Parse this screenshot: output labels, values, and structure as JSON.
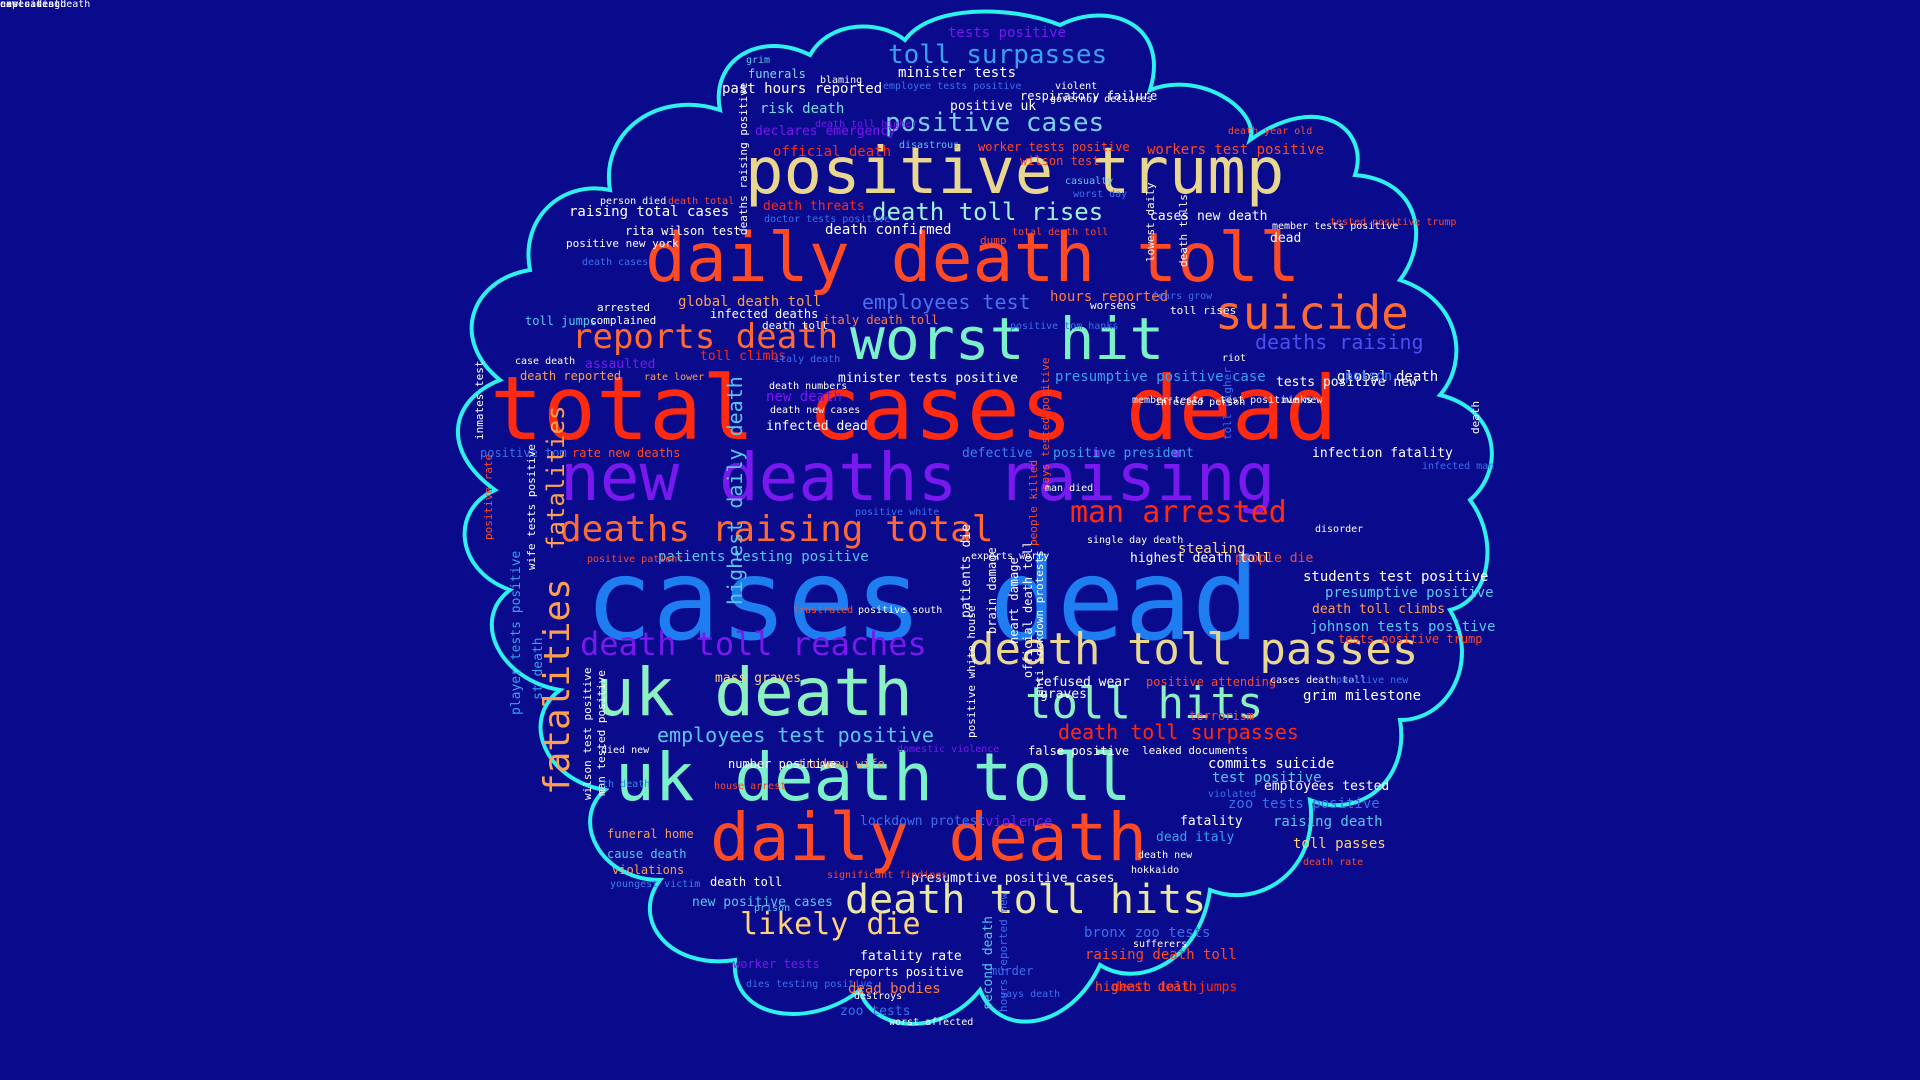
{
  "background_color": "#0a0a8c",
  "outline_color": "#2ff0f0",
  "words": [
    {
      "text": "cases dead",
      "color": "#1e7df0"
    },
    {
      "text": "total cases dead",
      "color": "#ff2a10"
    },
    {
      "text": "new deaths raising",
      "color": "#7a18f0"
    },
    {
      "text": "daily death toll",
      "color": "#ff4a26"
    },
    {
      "text": "positive trump",
      "color": "#e9d790"
    },
    {
      "text": "worst hit",
      "color": "#7cf0c8"
    },
    {
      "text": "uk death",
      "color": "#8cf0c0"
    },
    {
      "text": "uk death toll",
      "color": "#7cf0c8"
    },
    {
      "text": "daily death",
      "color": "#ff4a26"
    },
    {
      "text": "deaths raising total",
      "color": "#ff6a34"
    },
    {
      "text": "death toll passes",
      "color": "#e9d790"
    },
    {
      "text": "toll hits",
      "color": "#8cf0c0"
    },
    {
      "text": "suicide",
      "color": "#ff6a34"
    },
    {
      "text": "reports death",
      "color": "#ff6a34"
    },
    {
      "text": "death toll hits",
      "color": "#e9e6a6"
    },
    {
      "text": "man arrested",
      "color": "#ff2a10"
    },
    {
      "text": "death toll reaches",
      "color": "#7a18f0"
    },
    {
      "text": "fatalities",
      "color": "#ffa050"
    },
    {
      "text": "likely die",
      "color": "#ffd27a"
    },
    {
      "text": "toll surpasses",
      "color": "#3aa0f0"
    },
    {
      "text": "positive cases",
      "color": "#7cd0f0"
    },
    {
      "text": "death toll rises",
      "color": "#a0f0e0"
    },
    {
      "text": "employees test",
      "color": "#4a70f0"
    },
    {
      "text": "deaths raising",
      "color": "#4a50f0"
    },
    {
      "text": "death toll surpasses",
      "color": "#ff2a10"
    },
    {
      "text": "employees test positive",
      "color": "#58c8f0"
    },
    {
      "text": "tests positive",
      "color": "#7a18f0"
    },
    {
      "text": "minister tests",
      "color": "#ffffff"
    },
    {
      "text": "past hours reported",
      "color": "#ffffff"
    },
    {
      "text": "funerals",
      "color": "#80d8f0"
    },
    {
      "text": "risk death",
      "color": "#70e0e0"
    },
    {
      "text": "declares emergency",
      "color": "#7a18f0"
    },
    {
      "text": "official death",
      "color": "#ff2a10"
    },
    {
      "text": "workers test positive",
      "color": "#ff4a26"
    },
    {
      "text": "worker tests positive",
      "color": "#ff4a26"
    },
    {
      "text": "raising total cases",
      "color": "#ffffff"
    },
    {
      "text": "death threats",
      "color": "#ff2a10"
    },
    {
      "text": "death confirmed",
      "color": "#ffffff"
    },
    {
      "text": "cases new death",
      "color": "#ffffff"
    },
    {
      "text": "hours reported",
      "color": "#ff7a40"
    },
    {
      "text": "global death toll",
      "color": "#ffa050"
    },
    {
      "text": "infected deaths",
      "color": "#ffffff"
    },
    {
      "text": "italy death toll",
      "color": "#ff7a40"
    },
    {
      "text": "toll jumps",
      "color": "#58c8f0"
    },
    {
      "text": "assaulted",
      "color": "#7a18f0"
    },
    {
      "text": "toll climbs",
      "color": "#ff2a10"
    },
    {
      "text": "death reported",
      "color": "#ffa050"
    },
    {
      "text": "minister tests positive",
      "color": "#ffffff"
    },
    {
      "text": "presumptive positive case",
      "color": "#3aa0f0"
    },
    {
      "text": "tests positive new",
      "color": "#ffffff"
    },
    {
      "text": "global death",
      "color": "#ffffff"
    },
    {
      "text": "new death",
      "color": "#7a18f0"
    },
    {
      "text": "infected dead",
      "color": "#ffffff"
    },
    {
      "text": "rate new deaths",
      "color": "#ff4a26"
    },
    {
      "text": "positive tom",
      "color": "#3a70f0"
    },
    {
      "text": "defective",
      "color": "#3a80f0"
    },
    {
      "text": "positive president",
      "color": "#3aa0f0"
    },
    {
      "text": "infection fatality",
      "color": "#ffffff"
    },
    {
      "text": "highest daily death",
      "color": "#58c8f0"
    },
    {
      "text": "patients testing positive",
      "color": "#58c8f0"
    },
    {
      "text": "stealing",
      "color": "#ffd27a"
    },
    {
      "text": "highest death toll",
      "color": "#ffffff"
    },
    {
      "text": "people die",
      "color": "#ff4a26"
    },
    {
      "text": "students test positive",
      "color": "#ffffff"
    },
    {
      "text": "presumptive positive",
      "color": "#58c8f0"
    },
    {
      "text": "death toll climbs",
      "color": "#ffa050"
    },
    {
      "text": "johnson tests positive",
      "color": "#58c8f0"
    },
    {
      "text": "tests positive trump",
      "color": "#ff4a26"
    },
    {
      "text": "refused wear",
      "color": "#ffffff"
    },
    {
      "text": "positive attending",
      "color": "#ff4a26"
    },
    {
      "text": "grim milestone",
      "color": "#ffffff"
    },
    {
      "text": "mass graves",
      "color": "#ffd27a"
    },
    {
      "text": "player tests positive",
      "color": "#3aa0f0"
    },
    {
      "text": "st death",
      "color": "#3aa0f0"
    },
    {
      "text": "commits suicide",
      "color": "#ffffff"
    },
    {
      "text": "test positive",
      "color": "#58c8f0"
    },
    {
      "text": "zoo tests positive",
      "color": "#3a70f0"
    },
    {
      "text": "employees tested",
      "color": "#ffffff"
    },
    {
      "text": "raising death",
      "color": "#58c8f0"
    },
    {
      "text": "fatality",
      "color": "#ffffff"
    },
    {
      "text": "dead italy",
      "color": "#3aa0f0"
    },
    {
      "text": "toll passes",
      "color": "#ffd27a"
    },
    {
      "text": "lockdown protest",
      "color": "#3a70f0"
    },
    {
      "text": "violence",
      "color": "#7a18f0"
    },
    {
      "text": "funeral home",
      "color": "#ffa050"
    },
    {
      "text": "cause death",
      "color": "#58c8f0"
    },
    {
      "text": "violations",
      "color": "#ffa050"
    },
    {
      "text": "death toll",
      "color": "#ffffff"
    },
    {
      "text": "presumptive positive cases",
      "color": "#ffffff"
    },
    {
      "text": "new positive cases",
      "color": "#58c8f0"
    },
    {
      "text": "bronx zoo tests",
      "color": "#3a70f0"
    },
    {
      "text": "raising death toll",
      "color": "#ff4a26"
    },
    {
      "text": "death toll jumps",
      "color": "#ff2a10"
    },
    {
      "text": "highest death",
      "color": "#ff4a26"
    },
    {
      "text": "fatality rate",
      "color": "#ffffff"
    },
    {
      "text": "worker tests",
      "color": "#7a18f0"
    },
    {
      "text": "dead bodies",
      "color": "#ff7a40"
    },
    {
      "text": "zoo tests",
      "color": "#3a70f0"
    },
    {
      "text": "reports positive",
      "color": "#ffffff"
    },
    {
      "text": "murder",
      "color": "#3a70f0"
    },
    {
      "text": "trudeau wife",
      "color": "#ffa050"
    },
    {
      "text": "number positive",
      "color": "#ffffff"
    },
    {
      "text": "false positive",
      "color": "#ffffff"
    },
    {
      "text": "leaked documents",
      "color": "#ffffff"
    },
    {
      "text": "terrorism",
      "color": "#ff4a26"
    },
    {
      "text": "graves",
      "color": "#ffffff"
    },
    {
      "text": "positive uk",
      "color": "#ffffff"
    },
    {
      "text": "respiratory failure",
      "color": "#ffffff"
    },
    {
      "text": "wilson test",
      "color": "#ff4a26"
    },
    {
      "text": "rita wilson test",
      "color": "#ffffff"
    },
    {
      "text": "positive new york",
      "color": "#ffffff"
    },
    {
      "text": "dead",
      "color": "#ffffff"
    },
    {
      "text": "dump",
      "color": "#ff4a26"
    },
    {
      "text": "poison",
      "color": "#3a80f0"
    },
    {
      "text": "complained",
      "color": "#ffffff"
    },
    {
      "text": "arrested",
      "color": "#ffffff"
    },
    {
      "text": "worsens",
      "color": "#ffffff"
    },
    {
      "text": "toll rises",
      "color": "#ffffff"
    },
    {
      "text": "death numbers",
      "color": "#ffffff"
    },
    {
      "text": "death toll",
      "color": "#ffffff"
    },
    {
      "text": "fatalities",
      "color": "#ffa050"
    },
    {
      "text": "patients die",
      "color": "#ffffff"
    },
    {
      "text": "brain damage",
      "color": "#ffffff"
    },
    {
      "text": "heart damage",
      "color": "#ffffff"
    },
    {
      "text": "official death toll",
      "color": "#ffffff"
    },
    {
      "text": "positive white house",
      "color": "#ffffff"
    },
    {
      "text": "anti lockdown protests",
      "color": "#ffffff"
    },
    {
      "text": "second death",
      "color": "#58c8f0"
    },
    {
      "text": "hours reported new",
      "color": "#3a70f0"
    },
    {
      "text": "says tested positive",
      "color": "#ff4a26"
    },
    {
      "text": "people killed",
      "color": "#ff4a26"
    },
    {
      "text": "wilson test positive",
      "color": "#ffffff"
    },
    {
      "text": "man tested positive",
      "color": "#ffffff"
    },
    {
      "text": "positive rate",
      "color": "#ff4a26"
    },
    {
      "text": "wife tests positive",
      "color": "#ffffff"
    },
    {
      "text": "inmates test",
      "color": "#ffffff"
    },
    {
      "text": "death tolls",
      "color": "#ffffff"
    },
    {
      "text": "toll higher",
      "color": "#3a70f0"
    },
    {
      "text": "death",
      "color": "#ffffff"
    },
    {
      "text": "deaths raising positive",
      "color": "#ffffff"
    },
    {
      "text": "grim",
      "color": "#58c8f0"
    },
    {
      "text": "blaming",
      "color": "#ffffff"
    },
    {
      "text": "violent",
      "color": "#ffffff"
    },
    {
      "text": "governor declares",
      "color": "#ffffff"
    },
    {
      "text": "employee tests positive",
      "color": "#3a70f0"
    },
    {
      "text": "death toll higher",
      "color": "#7a18f0"
    },
    {
      "text": "disastrous",
      "color": "#58c8f0"
    },
    {
      "text": "death year old",
      "color": "#ff4a26"
    },
    {
      "text": "casualty",
      "color": "#58c8f0"
    },
    {
      "text": "worst day",
      "color": "#3a70f0"
    },
    {
      "text": "person died",
      "color": "#ffffff"
    },
    {
      "text": "death total",
      "color": "#ff4a26"
    },
    {
      "text": "doctor tests positive",
      "color": "#3a70f0"
    },
    {
      "text": "total death toll",
      "color": "#ff4a26"
    },
    {
      "text": "tested positive trump",
      "color": "#ff4a26"
    },
    {
      "text": "member tests positive",
      "color": "#ffffff"
    },
    {
      "text": "death cases",
      "color": "#3a70f0"
    },
    {
      "text": "lowest daily",
      "color": "#ffffff"
    },
    {
      "text": "fears grow",
      "color": "#3a70f0"
    },
    {
      "text": "positive tom hanks",
      "color": "#3a70f0"
    },
    {
      "text": "case death",
      "color": "#ffffff"
    },
    {
      "text": "italy death",
      "color": "#3a70f0"
    },
    {
      "text": "riot",
      "color": "#ffffff"
    },
    {
      "text": "rate lower",
      "color": "#ffa050"
    },
    {
      "text": "death new cases",
      "color": "#ffffff"
    },
    {
      "text": "infected person",
      "color": "#ffffff"
    },
    {
      "text": "member tests",
      "color": "#ffffff"
    },
    {
      "text": "minks",
      "color": "#ffffff"
    },
    {
      "text": "test positive new",
      "color": "#ffffff"
    },
    {
      "text": "infected man",
      "color": "#3a70f0"
    },
    {
      "text": "positive white",
      "color": "#3a70f0"
    },
    {
      "text": "man died",
      "color": "#ffffff"
    },
    {
      "text": "disorder",
      "color": "#ffffff"
    },
    {
      "text": "positive patient",
      "color": "#ff4a26"
    },
    {
      "text": "experts worry",
      "color": "#ffffff"
    },
    {
      "text": "single day death",
      "color": "#ffffff"
    },
    {
      "text": "positive south",
      "color": "#ffffff"
    },
    {
      "text": "frustrated",
      "color": "#ff4a26"
    },
    {
      "text": "cases death toll",
      "color": "#ffffff"
    },
    {
      "text": "positive new",
      "color": "#3a70f0"
    },
    {
      "text": "died new",
      "color": "#ffffff"
    },
    {
      "text": "domestic violence",
      "color": "#7a18f0"
    },
    {
      "text": "house arrest",
      "color": "#ff4a26"
    },
    {
      "text": "violated",
      "color": "#3a70f0"
    },
    {
      "text": "th death",
      "color": "#3a80f0"
    },
    {
      "text": "death new",
      "color": "#ffffff"
    },
    {
      "text": "hokkaido",
      "color": "#ffffff"
    },
    {
      "text": "death rate",
      "color": "#ff4a26"
    },
    {
      "text": "youngest victim",
      "color": "#3a80f0"
    },
    {
      "text": "significant findings",
      "color": "#ff4a26"
    },
    {
      "text": "prison",
      "color": "#58c8f0"
    },
    {
      "text": "sufferers",
      "color": "#ffffff"
    },
    {
      "text": "destroys",
      "color": "#ffffff"
    },
    {
      "text": "says death",
      "color": "#3a70f0"
    },
    {
      "text": "dies testing positive",
      "color": "#3a70f0"
    },
    {
      "text": "worst affected",
      "color": "#ffffff"
    },
    {
      "text": "cases death",
      "color": "#ffffff"
    },
    {
      "text": "new cases death",
      "color": "#ffffff"
    },
    {
      "text": "exploiting",
      "color": "#ffffff"
    }
  ]
}
